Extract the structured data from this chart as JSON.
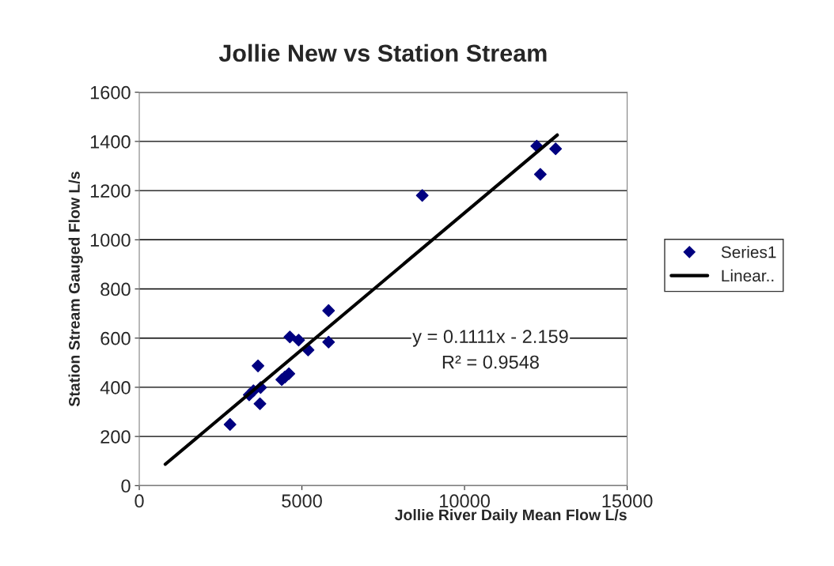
{
  "chart_data": {
    "type": "scatter",
    "title": "Jollie New vs Station Stream",
    "xlabel": "Jollie River Daily Mean Flow L/s",
    "ylabel": "Station Stream Gauged Flow L/s",
    "xlim": [
      0,
      15000
    ],
    "xticks": [
      0,
      5000,
      10000,
      15000
    ],
    "ylim": [
      0,
      1600
    ],
    "yticks": [
      0,
      200,
      400,
      600,
      800,
      1000,
      1200,
      1400,
      1600
    ],
    "grid": "y",
    "legend": "right",
    "series": [
      {
        "name": "Series1",
        "marker": "diamond",
        "color": "#000080",
        "x": [
          2790,
          3650,
          3710,
          3730,
          3510,
          3380,
          4380,
          4600,
          4480,
          4630,
          4900,
          5190,
          5820,
          5820,
          8700,
          12220,
          12800,
          12330
        ],
        "values": [
          249,
          487,
          333,
          399,
          386,
          369,
          431,
          455,
          442,
          605,
          592,
          552,
          712,
          584,
          1180,
          1381,
          1370,
          1266
        ]
      },
      {
        "name": "Linear..",
        "type": "line",
        "marker": "none",
        "line_style": "solid",
        "color": "#000000",
        "x": [
          800,
          12850
        ],
        "values": [
          87,
          1426
        ]
      }
    ],
    "annotations": [
      "y = 0.1111x - 2.159",
      "R² = 0.9548"
    ]
  }
}
